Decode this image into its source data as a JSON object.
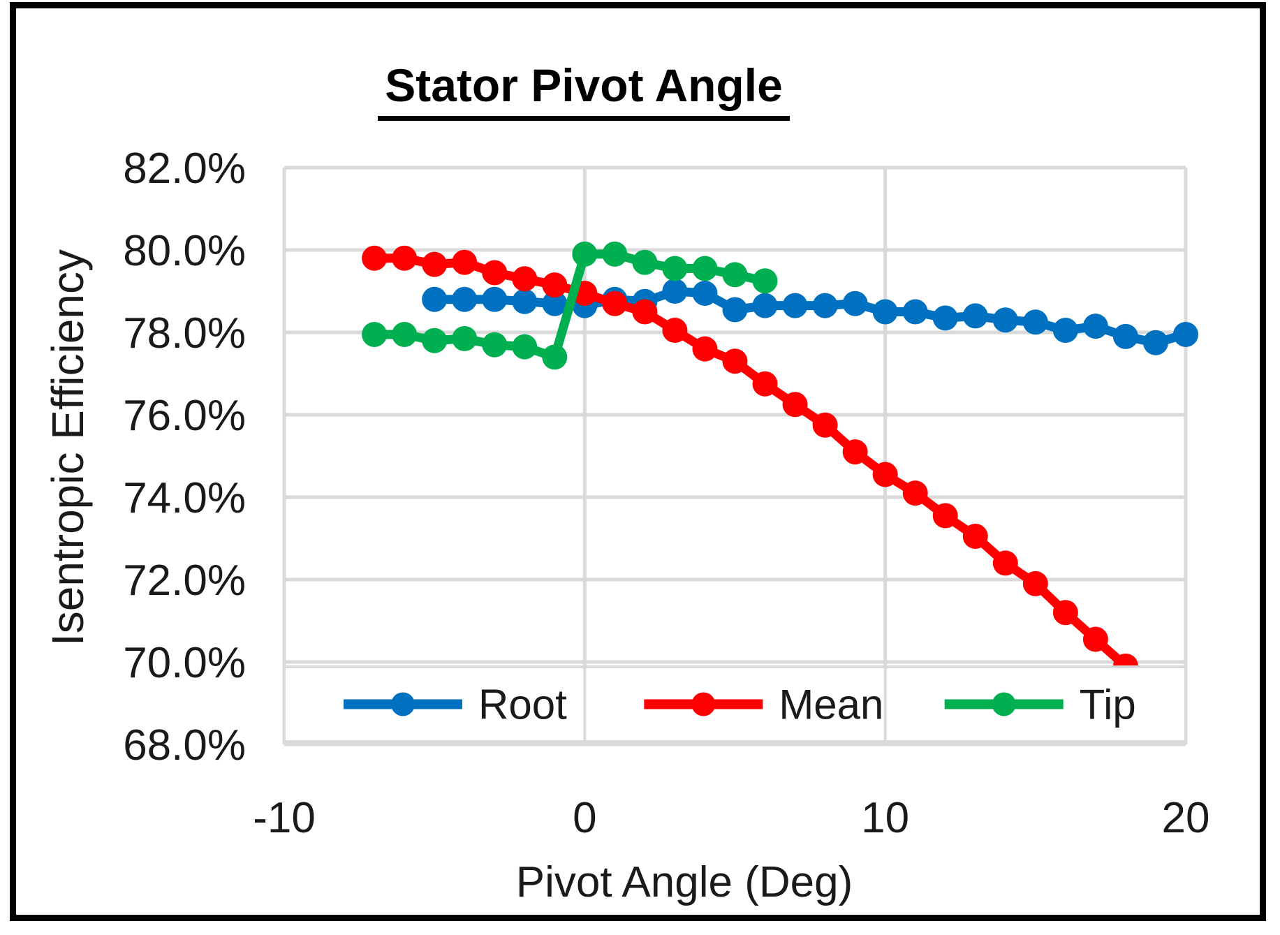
{
  "chart_data": {
    "type": "line",
    "title": "Stator Pivot Angle",
    "xlabel": "Pivot Angle (Deg)",
    "ylabel": "Isentropic Efficiency",
    "xlim": [
      -10,
      20
    ],
    "ylim": [
      68,
      82
    ],
    "grid": true,
    "grid_color": "#D9D9D9",
    "text_color": "#1A1A1A",
    "legend_position": "bottom-inside",
    "x_ticks": [
      {
        "value": -10,
        "label": "-10"
      },
      {
        "value": 0,
        "label": "0"
      },
      {
        "value": 10,
        "label": "10"
      },
      {
        "value": 20,
        "label": "20"
      }
    ],
    "y_ticks": [
      {
        "value": 82,
        "label": "82.0%"
      },
      {
        "value": 80,
        "label": "80.0%"
      },
      {
        "value": 78,
        "label": "78.0%"
      },
      {
        "value": 76,
        "label": "76.0%"
      },
      {
        "value": 74,
        "label": "74.0%"
      },
      {
        "value": 72,
        "label": "72.0%"
      },
      {
        "value": 70,
        "label": "70.0%"
      },
      {
        "value": 68,
        "label": "68.0%"
      }
    ],
    "series": [
      {
        "name": "Root",
        "color": "#0070C0",
        "x": [
          -5,
          -4,
          -3,
          -2,
          -1,
          0,
          1,
          2,
          3,
          4,
          5,
          6,
          7,
          8,
          9,
          10,
          11,
          12,
          13,
          14,
          15,
          16,
          17,
          18,
          19,
          20
        ],
        "y": [
          78.8,
          78.8,
          78.8,
          78.75,
          78.7,
          78.65,
          78.8,
          78.75,
          79.0,
          78.95,
          78.55,
          78.65,
          78.65,
          78.65,
          78.7,
          78.5,
          78.5,
          78.35,
          78.4,
          78.3,
          78.25,
          78.05,
          78.15,
          77.9,
          77.75,
          77.95
        ]
      },
      {
        "name": "Mean",
        "color": "#FF0000",
        "x": [
          -7,
          -6,
          -5,
          -4,
          -3,
          -2,
          -1,
          0,
          1,
          2,
          3,
          4,
          5,
          6,
          7,
          8,
          9,
          10,
          11,
          12,
          13,
          14,
          15,
          16,
          17,
          18
        ],
        "y": [
          79.8,
          79.8,
          79.65,
          79.7,
          79.45,
          79.3,
          79.15,
          78.95,
          78.7,
          78.5,
          78.05,
          77.6,
          77.3,
          76.75,
          76.25,
          75.75,
          75.1,
          74.55,
          74.1,
          73.55,
          73.05,
          72.4,
          71.9,
          71.2,
          70.55,
          69.9
        ]
      },
      {
        "name": "Tip",
        "color": "#00B050",
        "x": [
          -7,
          -6,
          -5,
          -4,
          -3,
          -2,
          -1,
          0,
          1,
          2,
          3,
          4,
          5,
          6
        ],
        "y": [
          77.95,
          77.95,
          77.8,
          77.85,
          77.7,
          77.65,
          77.4,
          79.9,
          79.9,
          79.7,
          79.55,
          79.55,
          79.4,
          79.25
        ]
      }
    ]
  }
}
